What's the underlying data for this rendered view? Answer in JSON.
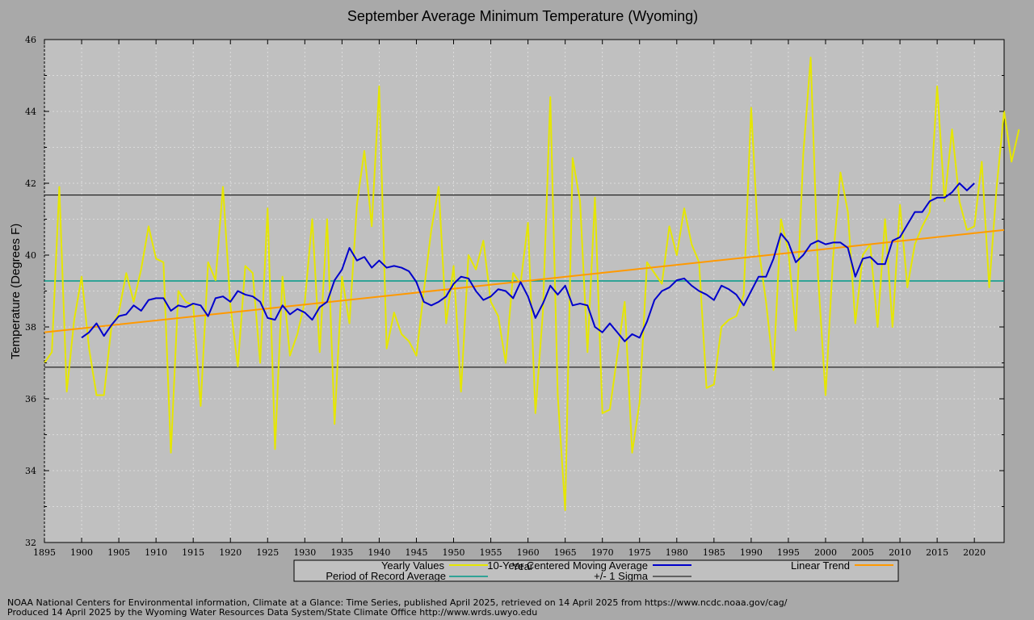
{
  "chart_data": {
    "type": "line",
    "title": "September Average Minimum Temperature (Wyoming)",
    "xlabel": "Year",
    "ylabel": "Temperature (Degrees F)",
    "xlim": [
      1895,
      2024
    ],
    "ylim": [
      32,
      46
    ],
    "x_ticks": [
      1895,
      1900,
      1905,
      1910,
      1915,
      1920,
      1925,
      1930,
      1935,
      1940,
      1945,
      1950,
      1955,
      1960,
      1965,
      1970,
      1975,
      1980,
      1985,
      1990,
      1995,
      2000,
      2005,
      2010,
      2015,
      2020
    ],
    "y_ticks": [
      32,
      34,
      36,
      38,
      40,
      42,
      44,
      46
    ],
    "grid": true,
    "legend_position": "bottom-center",
    "colors": {
      "yearly": "#e5e600",
      "moving_average": "#0000cc",
      "period_average": "#009988",
      "sigma": "#000000",
      "trend": "#ff9900",
      "plot_bg": "#c0c0c0",
      "page_bg": "#a9a9a9"
    },
    "legend": {
      "yearly": "Yearly Values",
      "moving_average": "10-Year Centered Moving Average",
      "trend": "Linear Trend",
      "period_average": "Period of Record Average",
      "sigma": "+/- 1 Sigma"
    },
    "series": [
      {
        "key": "yearly",
        "start_year": 1895,
        "values": [
          37.0,
          37.3,
          41.9,
          36.2,
          38.2,
          39.4,
          37.4,
          36.1,
          36.1,
          38.0,
          38.4,
          39.5,
          38.7,
          39.6,
          40.8,
          39.9,
          39.8,
          34.5,
          39.0,
          38.7,
          38.6,
          35.8,
          39.8,
          39.3,
          41.9,
          38.6,
          36.9,
          39.7,
          39.5,
          37.0,
          41.3,
          34.6,
          39.4,
          37.2,
          37.8,
          38.7,
          41.0,
          37.3,
          41.0,
          35.3,
          39.4,
          38.1,
          41.4,
          42.9,
          40.8,
          44.7,
          37.4,
          38.4,
          37.8,
          37.6,
          37.2,
          39.0,
          40.7,
          41.9,
          38.1,
          39.7,
          36.2,
          40.0,
          39.6,
          40.4,
          38.7,
          38.3,
          37.0,
          39.5,
          39.2,
          40.9,
          35.6,
          38.4,
          44.4,
          36.1,
          32.9,
          42.7,
          41.5,
          37.3,
          41.6,
          35.6,
          35.7,
          37.2,
          38.7,
          34.5,
          35.9,
          39.8,
          39.5,
          39.2,
          40.8,
          40.0,
          41.3,
          40.3,
          39.8,
          36.3,
          36.4,
          38.0,
          38.2,
          38.3,
          38.9,
          44.1,
          40.2,
          38.7,
          36.8,
          41.0,
          40.1,
          37.9,
          42.8,
          45.5,
          39.4,
          36.1,
          39.9,
          42.3,
          41.2,
          38.1,
          40.0,
          40.3,
          38.0,
          41.0,
          38.0,
          41.4,
          39.1,
          40.3,
          40.8,
          41.2,
          44.7,
          41.5,
          43.5,
          41.5,
          40.7,
          40.8,
          42.6,
          39.1,
          41.9,
          44.0,
          42.6,
          43.5
        ]
      },
      {
        "key": "moving_average",
        "start_year": 1900,
        "values": [
          37.7,
          37.85,
          38.1,
          37.75,
          38.05,
          38.3,
          38.35,
          38.6,
          38.45,
          38.75,
          38.8,
          38.8,
          38.45,
          38.6,
          38.55,
          38.65,
          38.6,
          38.3,
          38.8,
          38.85,
          38.7,
          39.0,
          38.9,
          38.85,
          38.7,
          38.25,
          38.2,
          38.6,
          38.35,
          38.5,
          38.4,
          38.2,
          38.55,
          38.7,
          39.3,
          39.6,
          40.2,
          39.85,
          39.95,
          39.65,
          39.85,
          39.65,
          39.7,
          39.65,
          39.55,
          39.25,
          38.7,
          38.6,
          38.7,
          38.85,
          39.2,
          39.4,
          39.35,
          39.0,
          38.75,
          38.85,
          39.05,
          39.0,
          38.8,
          39.25,
          38.85,
          38.25,
          38.65,
          39.15,
          38.9,
          39.15,
          38.6,
          38.65,
          38.6,
          38.0,
          37.85,
          38.1,
          37.85,
          37.6,
          37.8,
          37.7,
          38.15,
          38.75,
          39.0,
          39.1,
          39.3,
          39.35,
          39.15,
          39.0,
          38.9,
          38.75,
          39.15,
          39.05,
          38.9,
          38.6,
          39.0,
          39.4,
          39.4,
          39.9,
          40.6,
          40.35,
          39.8,
          40.0,
          40.3,
          40.4,
          40.3,
          40.35,
          40.35,
          40.2,
          39.4,
          39.9,
          39.95,
          39.75,
          39.75,
          40.4,
          40.5,
          40.85,
          41.2,
          41.2,
          41.5,
          41.6,
          41.6,
          41.75,
          42.0,
          41.8,
          42.0
        ]
      },
      {
        "key": "trend",
        "x": [
          1895,
          2024
        ],
        "values": [
          37.85,
          40.7
        ]
      },
      {
        "key": "period_average",
        "value": 39.28
      },
      {
        "key": "sigma",
        "values": [
          36.88,
          41.67
        ]
      }
    ]
  },
  "footer": {
    "line1": "NOAA National Centers for Environmental information, Climate at a Glance: Time Series, published April 2025, retrieved on 14 April 2025 from https://www.ncdc.noaa.gov/cag/",
    "line2": "Produced 14 April 2025 by the Wyoming Water Resources Data System/State Climate Office http://www.wrds.uwyo.edu"
  }
}
